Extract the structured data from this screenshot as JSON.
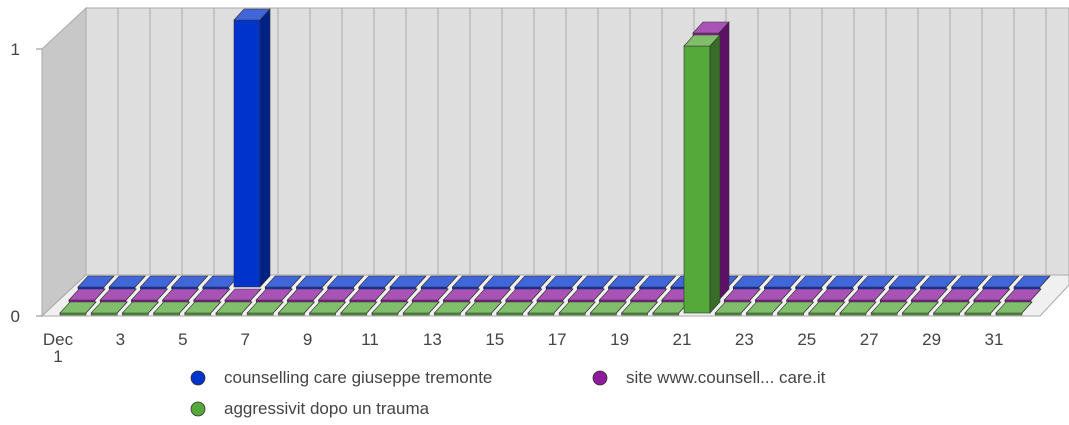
{
  "chart_data": {
    "type": "bar3d",
    "categories": [
      "Dec 1",
      null,
      "3",
      null,
      "5",
      null,
      "7",
      null,
      "9",
      null,
      "11",
      null,
      "13",
      null,
      "15",
      null,
      "17",
      null,
      "19",
      null,
      "21",
      null,
      "23",
      null,
      "25",
      null,
      "27",
      null,
      "29",
      null,
      "31"
    ],
    "series": [
      {
        "name": "counselling care giuseppe tremonte",
        "color": "#0033cc",
        "values": [
          0,
          0,
          0,
          0,
          0,
          1,
          0,
          0,
          0,
          0,
          0,
          0,
          0,
          0,
          0,
          0,
          0,
          0,
          0,
          0,
          0,
          0,
          0,
          0,
          0,
          0,
          0,
          0,
          0,
          0,
          0
        ]
      },
      {
        "name": "site www.counsell... care.it",
        "color": "#8e1a9e",
        "values": [
          0,
          0,
          0,
          0,
          0,
          0,
          0,
          0,
          0,
          0,
          0,
          0,
          0,
          0,
          0,
          0,
          0,
          0,
          0,
          0,
          1,
          0,
          0,
          0,
          0,
          0,
          0,
          0,
          0,
          0,
          0
        ]
      },
      {
        "name": "aggressivit dopo un trauma",
        "color": "#55a83a",
        "values": [
          0,
          0,
          0,
          0,
          0,
          0,
          0,
          0,
          0,
          0,
          0,
          0,
          0,
          0,
          0,
          0,
          0,
          0,
          0,
          0,
          1,
          0,
          0,
          0,
          0,
          0,
          0,
          0,
          0,
          0,
          0
        ]
      }
    ],
    "ylim": [
      0,
      1
    ],
    "yticks": [
      0,
      1
    ]
  }
}
